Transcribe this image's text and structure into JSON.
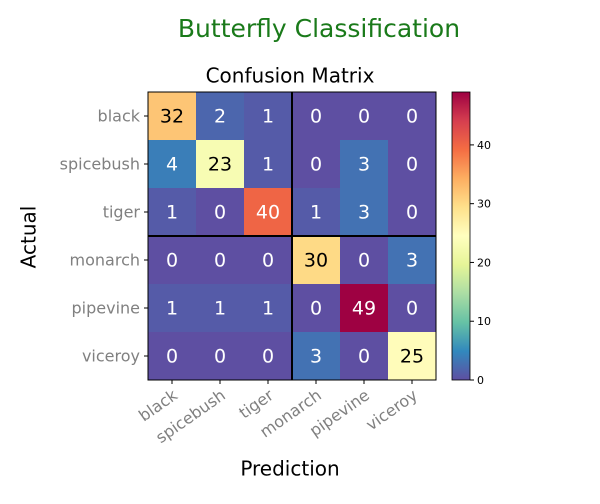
{
  "figure": {
    "suptitle": "Butterfly Classification",
    "suptitle_color": "#1a7a1a"
  },
  "chart_data": {
    "type": "heatmap",
    "title": "Confusion Matrix",
    "xlabel": "Prediction",
    "ylabel": "Actual",
    "x_categories": [
      "black",
      "spicebush",
      "tiger",
      "monarch",
      "pipevine",
      "viceroy"
    ],
    "y_categories": [
      "black",
      "spicebush",
      "tiger",
      "monarch",
      "pipevine",
      "viceroy"
    ],
    "values": [
      [
        32,
        2,
        1,
        0,
        0,
        0
      ],
      [
        4,
        23,
        1,
        0,
        3,
        0
      ],
      [
        1,
        0,
        40,
        1,
        3,
        0
      ],
      [
        0,
        0,
        0,
        30,
        0,
        3
      ],
      [
        1,
        1,
        1,
        0,
        49,
        0
      ],
      [
        0,
        0,
        0,
        3,
        0,
        25
      ]
    ],
    "colormap": "Spectral_r",
    "value_range": [
      0,
      49
    ],
    "colorbar_ticks": [
      0,
      10,
      20,
      30,
      40
    ],
    "group_separators_after_index": [
      2
    ],
    "grid": false
  }
}
